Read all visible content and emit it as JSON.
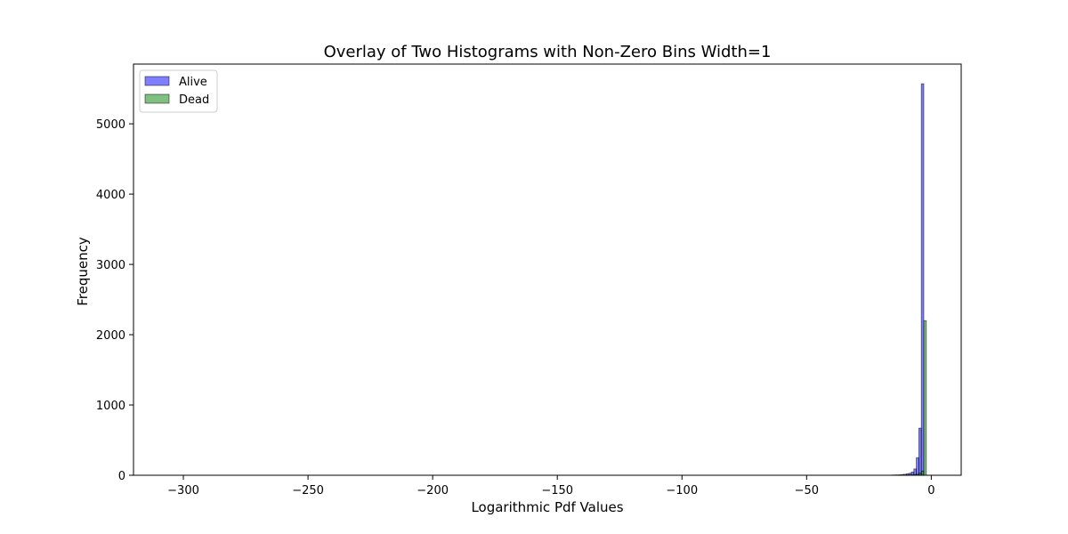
{
  "chart_data": {
    "type": "bar",
    "title": "Overlay of Two Histograms with Non-Zero Bins Width=1",
    "xlabel": "Logarithmic Pdf Values",
    "ylabel": "Frequency",
    "xlim": [
      -320,
      12
    ],
    "ylim": [
      0,
      5850
    ],
    "xticks": [
      -300,
      -250,
      -200,
      -150,
      -100,
      -50,
      0
    ],
    "xtick_labels": [
      "−300",
      "−250",
      "−200",
      "−150",
      "−100",
      "−50",
      "0"
    ],
    "yticks": [
      0,
      1000,
      2000,
      3000,
      4000,
      5000
    ],
    "ytick_labels": [
      "0",
      "1000",
      "2000",
      "3000",
      "4000",
      "5000"
    ],
    "grid": false,
    "legend_position": "top-left",
    "bin_width": 1,
    "series": [
      {
        "name": "Alive",
        "color": "#0000ff",
        "fill_opacity": 0.5,
        "bins_start": [
          -16,
          -15,
          -14,
          -13,
          -12,
          -11,
          -10,
          -9,
          -8,
          -7,
          -6,
          -5,
          -4
        ],
        "values": [
          3,
          4,
          5,
          7,
          10,
          14,
          20,
          28,
          45,
          90,
          250,
          670,
          5570
        ]
      },
      {
        "name": "Dead",
        "color": "#008000",
        "fill_opacity": 0.5,
        "bins_start": [
          -14,
          -12,
          -10,
          -9,
          -8,
          -7,
          -6,
          -5,
          -4,
          -3
        ],
        "values": [
          1,
          2,
          3,
          4,
          6,
          9,
          15,
          30,
          60,
          2200
        ]
      }
    ]
  }
}
